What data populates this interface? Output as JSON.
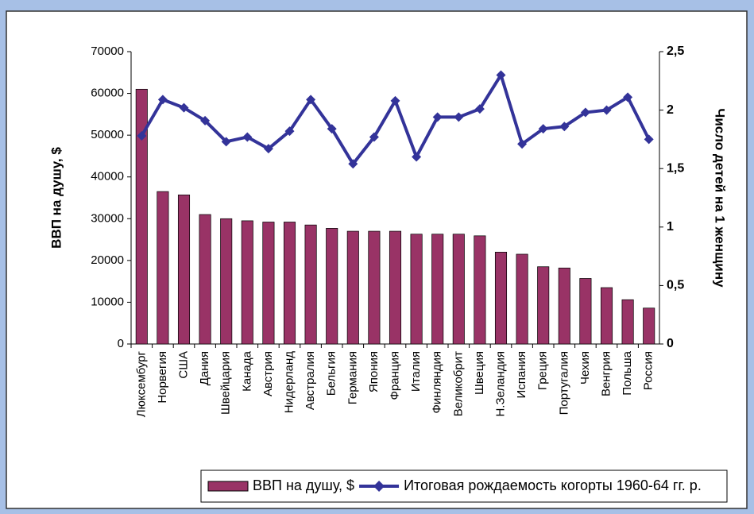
{
  "chart_data": {
    "type": "bar",
    "y_label": "ВВП на душу, $",
    "y2_label": "Число детей на 1 женщину",
    "categories": [
      "Люксембург",
      "Норвегия",
      "США",
      "Дания",
      "Швейцария",
      "Канада",
      "Австрия",
      "Нидерланд",
      "Австралия",
      "Бельгия",
      "Германия",
      "Япония",
      "Франция",
      "Италия",
      "Финляндия",
      "Великобрит",
      "Швеция",
      "Н.Зеландия",
      "Испания",
      "Греция",
      "Португалия",
      "Чехия",
      "Венгрия",
      "Польша",
      "Россия"
    ],
    "series": [
      {
        "name": "ВВП на душу, $",
        "type": "bar",
        "color": "#993366",
        "values": [
          61000,
          36500,
          35700,
          31000,
          30000,
          29500,
          29200,
          29200,
          28500,
          27700,
          27000,
          27000,
          27000,
          26300,
          26300,
          26300,
          25900,
          22000,
          21500,
          18500,
          18200,
          15700,
          13500,
          10600,
          8600
        ]
      },
      {
        "name": "Итоговая рождаемость когорты 1960-64 гг. р.",
        "type": "line",
        "axis": "y2",
        "color": "#333399",
        "values": [
          1.78,
          2.09,
          2.02,
          1.91,
          1.73,
          1.77,
          1.67,
          1.82,
          2.09,
          1.84,
          1.54,
          1.77,
          2.08,
          1.6,
          1.94,
          1.94,
          2.01,
          2.3,
          1.71,
          1.84,
          1.86,
          1.98,
          2.0,
          2.11,
          1.75
        ]
      }
    ],
    "ylim": [
      0,
      70000
    ],
    "yticks": [
      0,
      10000,
      20000,
      30000,
      40000,
      50000,
      60000,
      70000
    ],
    "y2lim": [
      0,
      2.5
    ],
    "y2ticks": [
      0,
      {
        "value": 0.5,
        "label": "0,5"
      },
      1,
      {
        "value": 1.5,
        "label": "1,5"
      },
      2,
      {
        "value": 2.5,
        "label": "2,5"
      }
    ],
    "legend": "bottom"
  }
}
